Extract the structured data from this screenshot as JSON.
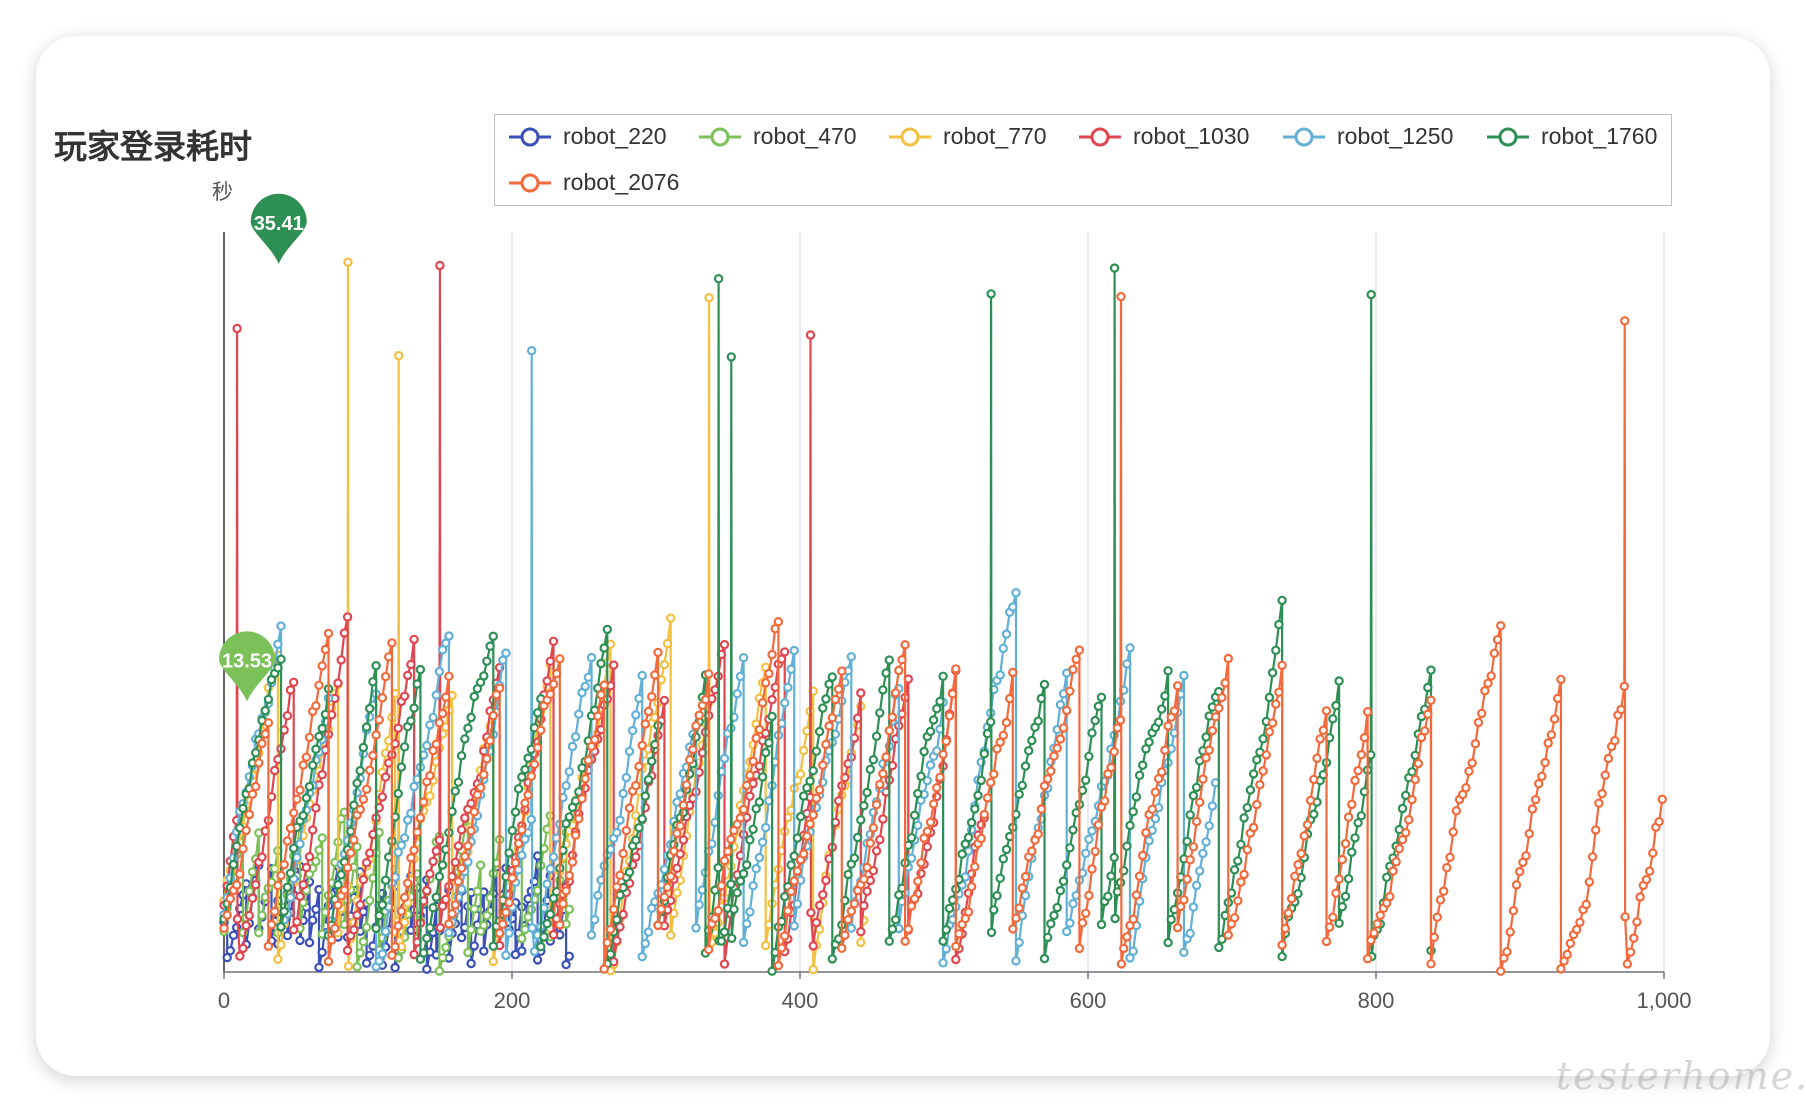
{
  "chart_data": {
    "type": "line",
    "title": "玩家登录耗时",
    "ylabel": "秒",
    "xlabel": "",
    "xlim": [
      0,
      1000
    ],
    "x_ticks": [
      "0",
      "200",
      "400",
      "600",
      "800",
      "1,000"
    ],
    "ylim": [
      0,
      37
    ],
    "grid": "vertical",
    "legend": "top",
    "series": [
      {
        "name": "robot_220",
        "color": "#3a4fb8",
        "xmax": 240,
        "peak": 8.4,
        "seed": 3
      },
      {
        "name": "robot_470",
        "color": "#7cc059",
        "xmax": 240,
        "peak": 13.53,
        "seed": 7
      },
      {
        "name": "robot_770",
        "color": "#f4c042",
        "xmax": 445,
        "peak": 35.5,
        "seed": 11
      },
      {
        "name": "robot_1030",
        "color": "#e04650",
        "xmax": 530,
        "peak": 35.5,
        "seed": 13
      },
      {
        "name": "robot_1250",
        "color": "#63b0d6",
        "xmax": 690,
        "peak": 35.5,
        "seed": 17
      },
      {
        "name": "robot_1760",
        "color": "#2e8f55",
        "xmax": 840,
        "peak": 35.41,
        "seed": 19
      },
      {
        "name": "robot_2076",
        "color": "#f26a3c",
        "xmax": 1000,
        "peak": 35.41,
        "seed": 23
      }
    ],
    "markers": [
      {
        "label": "13.53",
        "series": "robot_470",
        "x": 16,
        "y": 13.53,
        "color": "#7cc059"
      },
      {
        "label": "35.41",
        "series": "robot_1760",
        "x": 38,
        "y": 35.41,
        "color": "#2e8f55"
      }
    ]
  },
  "watermark": "testerhome.com"
}
